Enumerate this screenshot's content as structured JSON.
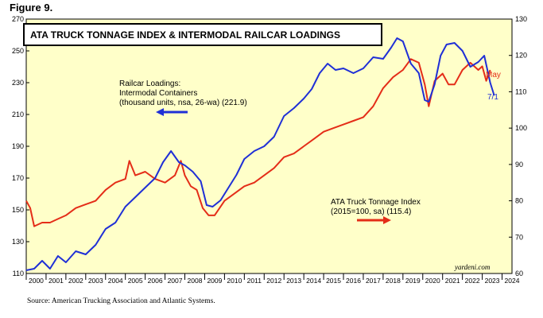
{
  "figure_label": "Figure 9.",
  "source": "Source: American Trucking Association and Atlantic Systems.",
  "chart_data": {
    "type": "line",
    "title": "ATA TRUCK TONNAGE INDEX & INTERMODAL RAILCAR LOADINGS",
    "watermark": "yardeni.com",
    "x_range": [
      2000,
      2024.5
    ],
    "x_ticks": [
      "2000",
      "2001",
      "2002",
      "2003",
      "2004",
      "2005",
      "2006",
      "2007",
      "2008",
      "2009",
      "2010",
      "2011",
      "2012",
      "2013",
      "2014",
      "2015",
      "2016",
      "2017",
      "2018",
      "2019",
      "2020",
      "2021",
      "2022",
      "2023",
      "2024"
    ],
    "left_axis": {
      "range": [
        110,
        270
      ],
      "ticks": [
        "110",
        "130",
        "150",
        "170",
        "190",
        "210",
        "230",
        "250",
        "270"
      ]
    },
    "right_axis": {
      "range": [
        60,
        130
      ],
      "ticks": [
        "60",
        "70",
        "80",
        "90",
        "100",
        "110",
        "120",
        "130"
      ]
    },
    "grid": false,
    "series": [
      {
        "name": "Railcar Loadings: Intermodal Containers (thousand units, nsa, 26-wa) (221.9)",
        "axis": "left",
        "color": "#1f2fd6",
        "end_label": "7/1",
        "legend_lines": [
          "Railcar Loadings:",
          "Intermodal Containers",
          "(thousand units, nsa, 26-wa) (221.9)"
        ],
        "x": [
          2000.0,
          2000.4,
          2000.8,
          2001.2,
          2001.6,
          2002.0,
          2002.5,
          2003.0,
          2003.5,
          2004.0,
          2004.5,
          2005.0,
          2005.5,
          2006.0,
          2006.5,
          2006.9,
          2007.3,
          2007.7,
          2008.0,
          2008.4,
          2008.8,
          2009.1,
          2009.4,
          2009.8,
          2010.2,
          2010.6,
          2011.0,
          2011.5,
          2012.0,
          2012.5,
          2013.0,
          2013.5,
          2014.0,
          2014.4,
          2014.8,
          2015.2,
          2015.6,
          2016.0,
          2016.5,
          2017.0,
          2017.5,
          2018.0,
          2018.4,
          2018.7,
          2019.0,
          2019.4,
          2019.8,
          2020.1,
          2020.3,
          2020.6,
          2020.9,
          2021.2,
          2021.6,
          2022.0,
          2022.4,
          2022.8,
          2023.1,
          2023.4,
          2023.6
        ],
        "values": [
          112,
          113,
          118,
          113,
          121,
          117,
          124,
          122,
          128,
          138,
          142,
          152,
          158,
          164,
          170,
          180,
          187,
          180,
          178,
          174,
          168,
          153,
          152,
          156,
          164,
          172,
          182,
          187,
          190,
          196,
          209,
          214,
          220,
          226,
          236,
          242,
          238,
          239,
          236,
          239,
          246,
          245,
          252,
          258,
          256,
          242,
          236,
          219,
          218,
          229,
          247,
          254,
          255,
          250,
          240,
          243,
          247,
          230,
          222
        ]
      },
      {
        "name": "ATA Truck Tonnage Index (2015=100, sa) (115.4)",
        "axis": "right",
        "color": "#e42d18",
        "end_label": "May",
        "legend_lines": [
          "ATA Truck Tonnage Index",
          "(2015=100, sa) (115.4)"
        ],
        "x": [
          2000.0,
          2000.2,
          2000.4,
          2000.8,
          2001.2,
          2001.6,
          2002.0,
          2002.5,
          2003.0,
          2003.5,
          2004.0,
          2004.5,
          2005.0,
          2005.2,
          2005.5,
          2006.0,
          2006.5,
          2007.0,
          2007.5,
          2007.8,
          2008.0,
          2008.3,
          2008.6,
          2008.9,
          2009.2,
          2009.5,
          2010.0,
          2010.5,
          2011.0,
          2011.5,
          2012.0,
          2012.5,
          2013.0,
          2013.5,
          2014.0,
          2014.5,
          2015.0,
          2015.5,
          2016.0,
          2016.5,
          2017.0,
          2017.5,
          2018.0,
          2018.5,
          2019.0,
          2019.4,
          2019.8,
          2020.1,
          2020.3,
          2020.6,
          2021.0,
          2021.3,
          2021.6,
          2022.0,
          2022.4,
          2022.8,
          2023.0,
          2023.2,
          2023.4
        ],
        "values": [
          80,
          78,
          73,
          74,
          74,
          75,
          76,
          78,
          79,
          80,
          83,
          85,
          86,
          91,
          87,
          88,
          86,
          85,
          87,
          91,
          87,
          84,
          83,
          78,
          76,
          76,
          80,
          82,
          84,
          85,
          87,
          89,
          92,
          93,
          95,
          97,
          99,
          100,
          101,
          102,
          103,
          106,
          111,
          114,
          116,
          119,
          118,
          112,
          106,
          113,
          115,
          112,
          112,
          116,
          118,
          116,
          117,
          113,
          116
        ]
      }
    ]
  }
}
